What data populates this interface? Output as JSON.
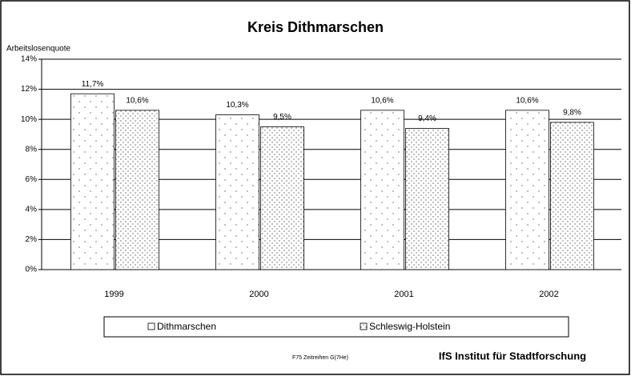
{
  "chart_data": {
    "type": "bar",
    "title": "Kreis Dithmarschen",
    "y_label": "Arbeitslosenquote",
    "categories": [
      "1999",
      "2000",
      "2001",
      "2002"
    ],
    "series": [
      {
        "name": "Dithmarschen",
        "color": "#000000",
        "values": [
          11.7,
          10.3,
          10.6,
          10.6
        ],
        "value_labels": [
          "11,7%",
          "10,3%",
          "10,6%",
          "10,6%"
        ]
      },
      {
        "name": "Schleswig-Holstein",
        "color": "#000000",
        "values": [
          10.6,
          9.5,
          9.4,
          9.8
        ],
        "value_labels": [
          "10,6%",
          "9,5%",
          "9,4%",
          "9,8%"
        ]
      }
    ],
    "ylim": [
      0,
      14
    ],
    "yticks": [
      {
        "value": 0,
        "label": "0%"
      },
      {
        "value": 2,
        "label": "2%"
      },
      {
        "value": 4,
        "label": "4%"
      },
      {
        "value": 6,
        "label": "6%"
      },
      {
        "value": 8,
        "label": "8%"
      },
      {
        "value": 10,
        "label": "10%"
      },
      {
        "value": 12,
        "label": "12%"
      },
      {
        "value": 14,
        "label": "14%"
      }
    ],
    "grid": true,
    "legend": "bottom",
    "footnote": "F75 Zeitreihen  G(7He)",
    "source": "IfS Institut für Stadtforschung"
  }
}
